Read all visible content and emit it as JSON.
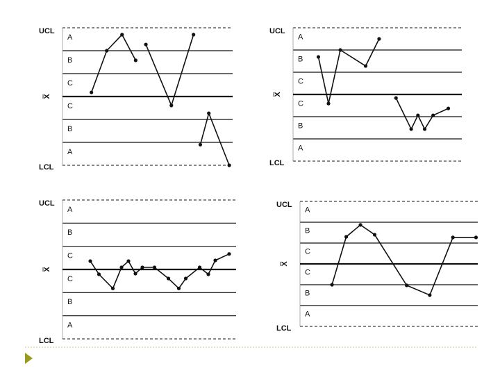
{
  "chart_data": [
    {
      "type": "line",
      "zones": [
        "A",
        "B",
        "C",
        "C",
        "B",
        "A"
      ],
      "ylim": [
        -3,
        3
      ],
      "yticks": [
        {
          "value": 3,
          "label": "UCL"
        },
        {
          "value": 0,
          "label": "X̿"
        },
        {
          "value": -3,
          "label": "LCL"
        }
      ],
      "xlim": [
        0,
        100
      ],
      "x": [
        17,
        26,
        35,
        43,
        null,
        49,
        64,
        77,
        null,
        81,
        86,
        98
      ],
      "series": [
        {
          "color": "#111111",
          "values": [
            0.18,
            2.0,
            2.7,
            1.58,
            null,
            2.27,
            -0.39,
            2.7,
            null,
            -2.1,
            -0.73,
            -3.0
          ]
        }
      ]
    },
    {
      "type": "line",
      "zones": [
        "A",
        "B",
        "C",
        "C",
        "B",
        "A"
      ],
      "ylim": [
        -3,
        3
      ],
      "yticks": [
        {
          "value": 3,
          "label": "UCL"
        },
        {
          "value": 0,
          "label": "X̿"
        },
        {
          "value": -3,
          "label": "LCL"
        }
      ],
      "xlim": [
        0,
        100
      ],
      "x": [
        15,
        21,
        28,
        43,
        51,
        null,
        61,
        70,
        74,
        78,
        83,
        92
      ],
      "series": [
        {
          "color": "#111111",
          "values": [
            1.69,
            -0.41,
            2.0,
            1.28,
            2.5,
            null,
            -0.16,
            -1.56,
            -0.94,
            -1.56,
            -0.94,
            -0.63
          ]
        }
      ]
    },
    {
      "type": "line",
      "zones": [
        "A",
        "B",
        "C",
        "C",
        "B",
        "A"
      ],
      "ylim": [
        -3,
        3
      ],
      "yticks": [
        {
          "value": 3,
          "label": "UCL"
        },
        {
          "value": 0,
          "label": "X̿"
        },
        {
          "value": -3,
          "label": "LCL"
        }
      ],
      "xlim": [
        0,
        100
      ],
      "x": [
        16,
        21,
        29,
        34,
        38,
        42,
        46,
        53,
        61,
        67,
        71,
        79,
        84,
        88,
        96
      ],
      "series": [
        {
          "color": "#111111",
          "values": [
            0.36,
            -0.21,
            -0.82,
            0.09,
            0.36,
            -0.18,
            0.09,
            0.09,
            -0.39,
            -0.82,
            -0.39,
            0.09,
            -0.21,
            0.39,
            0.67
          ]
        }
      ]
    },
    {
      "type": "line",
      "zones": [
        "A",
        "B",
        "C",
        "C",
        "B",
        "A"
      ],
      "ylim": [
        -3,
        3
      ],
      "yticks": [
        {
          "value": 3,
          "label": "UCL"
        },
        {
          "value": 0,
          "label": "X̿"
        },
        {
          "value": -3,
          "label": "LCL"
        }
      ],
      "xlim": [
        0,
        100
      ],
      "x": [
        18,
        26,
        34,
        42,
        60,
        73,
        86,
        99
      ],
      "series": [
        {
          "color": "#111111",
          "values": [
            -1.0,
            1.3,
            1.87,
            1.4,
            -1.03,
            -1.5,
            1.27,
            1.27
          ]
        }
      ]
    }
  ]
}
